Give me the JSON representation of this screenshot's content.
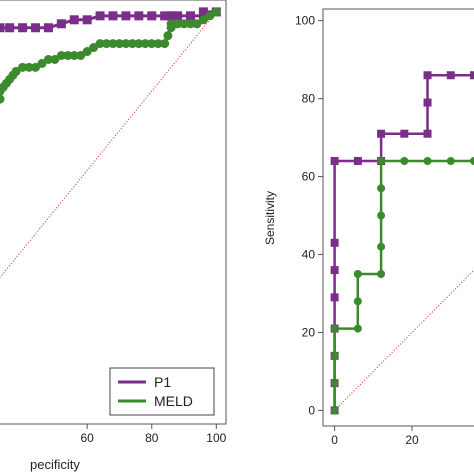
{
  "chart_data": [
    {
      "type": "line",
      "title": "",
      "xlabel": "pecificity",
      "ylabel": "",
      "xlim": [
        33,
        103
      ],
      "ylim": [
        -4,
        103
      ],
      "xticks": [
        60,
        80,
        100
      ],
      "grid": false,
      "legend": {
        "placement": "bottom-right",
        "entries": [
          "P1",
          "MELD"
        ]
      },
      "diagonal": true,
      "series": [
        {
          "name": "P1",
          "color": "#7a2e8a",
          "marker": "square",
          "x": [
            33,
            36,
            40,
            44,
            48,
            52,
            56,
            60,
            64,
            68,
            72,
            76,
            80,
            84,
            86,
            88,
            92,
            96,
            96,
            100
          ],
          "y": [
            96,
            96,
            96,
            96,
            96,
            97,
            98,
            98,
            99,
            99,
            99,
            99,
            99,
            99,
            99,
            99,
            99,
            99,
            100,
            100
          ]
        },
        {
          "name": "MELD",
          "color": "#3b8a2e",
          "marker": "circle",
          "x": [
            33,
            33,
            34,
            35,
            36,
            37,
            38,
            40,
            42,
            44,
            46,
            48,
            50,
            52,
            54,
            56,
            58,
            60,
            62,
            64,
            66,
            68,
            70,
            72,
            74,
            76,
            78,
            80,
            82,
            84,
            85,
            86,
            86,
            88,
            90,
            92,
            94,
            96,
            98,
            100
          ],
          "y": [
            78,
            80,
            81,
            82,
            83,
            84,
            85,
            86,
            86,
            86,
            87,
            88,
            88,
            89,
            89,
            89,
            89,
            90,
            91,
            92,
            92,
            92,
            92,
            92,
            92,
            92,
            92,
            92,
            92,
            92,
            94,
            96,
            97,
            97,
            97,
            97,
            97,
            98,
            99,
            100
          ]
        }
      ]
    },
    {
      "type": "line",
      "title": "",
      "xlabel": "",
      "ylabel": "Sensitivity",
      "xlim": [
        -3,
        36
      ],
      "ylim": [
        -4,
        103
      ],
      "xticks": [
        0,
        20
      ],
      "yticks": [
        0,
        20,
        40,
        60,
        80,
        100
      ],
      "grid": false,
      "diagonal": true,
      "series": [
        {
          "name": "P1",
          "color": "#7a2e8a",
          "marker": "square",
          "x": [
            0,
            0,
            0,
            0,
            0,
            0,
            0,
            0,
            6,
            12,
            12,
            18,
            24,
            24,
            24,
            30,
            36
          ],
          "y": [
            0,
            7,
            14,
            21,
            29,
            36,
            43,
            64,
            64,
            64,
            71,
            71,
            71,
            79,
            86,
            86,
            86
          ],
          "partial": true
        },
        {
          "name": "MELD",
          "color": "#3b8a2e",
          "marker": "circle",
          "x": [
            0,
            0,
            0,
            0,
            6,
            6,
            6,
            12,
            12,
            12,
            12,
            12,
            18,
            24,
            30,
            36
          ],
          "y": [
            0,
            7,
            14,
            21,
            21,
            28,
            35,
            35,
            42,
            50,
            57,
            64,
            64,
            64,
            64,
            64
          ],
          "partial": true
        }
      ]
    }
  ]
}
